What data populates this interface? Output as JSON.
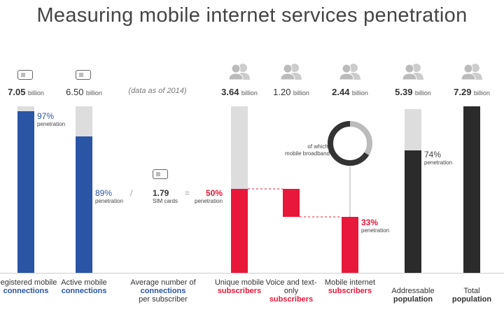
{
  "chart_data": {
    "type": "bar",
    "title": "Measuring mobile internet services penetration",
    "note": "(data as of 2014)",
    "columns": [
      {
        "label1": "Registered mobile",
        "label2": "connections",
        "value": "7.05",
        "unit": "billion",
        "penetration": "97%",
        "pen_label": "penetration",
        "fill": 0.97,
        "color": "#2a55a5"
      },
      {
        "label1": "Active mobile",
        "label2": "connections",
        "value": "6.50",
        "unit": "billion",
        "penetration": "89%",
        "pen_label": "penetration",
        "fill": 0.89,
        "color": "#2a55a5"
      },
      {
        "label1": "Average number of",
        "label2": "connections",
        "label3": "per subscriber",
        "value": "1.79",
        "unit": "SIM cards"
      },
      {
        "label1": "Unique mobile",
        "label2": "subscribers",
        "value": "3.64",
        "unit": "billion",
        "penetration": "50%",
        "pen_label": "penetration",
        "fill": 0.5,
        "color": "#e8183a"
      },
      {
        "label1": "Voice and text-only",
        "label2": "subscribers",
        "value": "1.20",
        "unit": "billion",
        "color": "#e8183a"
      },
      {
        "label1": "Mobile internet",
        "label2": "subscribers",
        "value": "2.44",
        "unit": "billion",
        "penetration": "33%",
        "pen_label": "penetration",
        "fill": 0.33,
        "color": "#e8183a"
      },
      {
        "label1": "Addressable",
        "label2": "population",
        "value": "5.39",
        "unit": "billion",
        "penetration": "74%",
        "pen_label": "penetration",
        "fill": 0.74,
        "color": "#2b2b2b"
      },
      {
        "label1": "Total",
        "label2": "population",
        "value": "7.29",
        "unit": "billion",
        "fill": 1,
        "color": "#2b2b2b"
      }
    ],
    "operators": {
      "divide": "/",
      "equals": "="
    },
    "donut": {
      "label1": "of which,",
      "label2": "mobile broadband",
      "fraction": 0.66
    }
  }
}
